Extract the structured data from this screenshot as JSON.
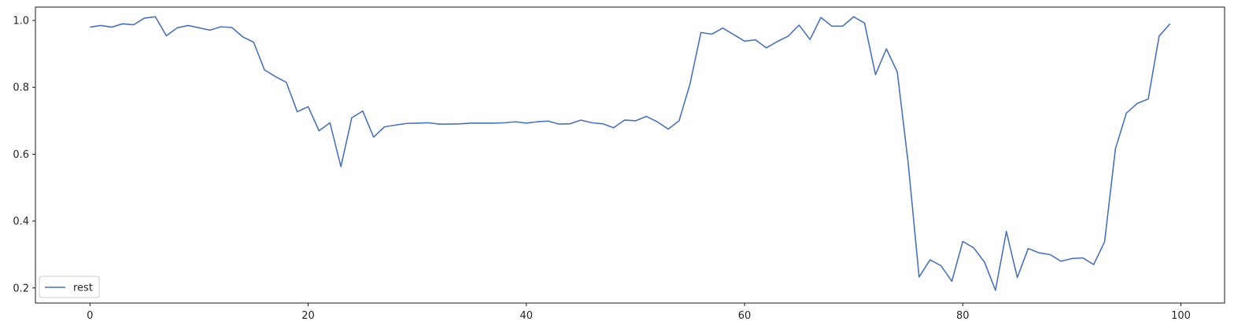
{
  "chart_data": {
    "type": "line",
    "title": "",
    "xlabel": "",
    "ylabel": "",
    "xlim": [
      -5,
      104
    ],
    "ylim": [
      0.155,
      1.04
    ],
    "xticks": [
      0,
      20,
      40,
      60,
      80,
      100
    ],
    "yticks": [
      0.2,
      0.4,
      0.6,
      0.8,
      1.0
    ],
    "xtick_labels": [
      "0",
      "20",
      "40",
      "60",
      "80",
      "100"
    ],
    "ytick_labels": [
      "0.2",
      "0.4",
      "0.6",
      "0.8",
      "1.0"
    ],
    "grid": false,
    "legend_position": "lower-left",
    "series": [
      {
        "name": "rest",
        "color": "#4c72b0",
        "x": [
          0,
          1,
          2,
          3,
          4,
          5,
          6,
          7,
          8,
          9,
          10,
          11,
          12,
          13,
          14,
          15,
          16,
          17,
          18,
          19,
          20,
          21,
          22,
          23,
          24,
          25,
          26,
          27,
          28,
          29,
          30,
          31,
          32,
          33,
          34,
          35,
          36,
          37,
          38,
          39,
          40,
          41,
          42,
          43,
          44,
          45,
          46,
          47,
          48,
          49,
          50,
          51,
          52,
          53,
          54,
          55,
          56,
          57,
          58,
          59,
          60,
          61,
          62,
          63,
          64,
          65,
          66,
          67,
          68,
          69,
          70,
          71,
          72,
          73,
          74,
          75,
          76,
          77,
          78,
          79,
          80,
          81,
          82,
          83,
          84,
          85,
          86,
          87,
          88,
          89,
          90,
          91,
          92,
          93,
          94,
          95,
          96,
          97,
          98,
          99
        ],
        "values": [
          0.98,
          0.985,
          0.98,
          0.99,
          0.987,
          1.007,
          1.011,
          0.954,
          0.978,
          0.985,
          0.978,
          0.971,
          0.981,
          0.979,
          0.951,
          0.935,
          0.852,
          0.832,
          0.815,
          0.727,
          0.742,
          0.67,
          0.694,
          0.563,
          0.709,
          0.729,
          0.651,
          0.682,
          0.687,
          0.692,
          0.693,
          0.694,
          0.69,
          0.69,
          0.691,
          0.693,
          0.693,
          0.693,
          0.694,
          0.697,
          0.693,
          0.697,
          0.699,
          0.69,
          0.691,
          0.702,
          0.694,
          0.691,
          0.679,
          0.702,
          0.7,
          0.713,
          0.697,
          0.675,
          0.7,
          0.81,
          0.964,
          0.959,
          0.977,
          0.958,
          0.938,
          0.942,
          0.918,
          0.937,
          0.953,
          0.986,
          0.943,
          1.009,
          0.983,
          0.983,
          1.011,
          0.992,
          0.838,
          0.915,
          0.846,
          0.573,
          0.233,
          0.284,
          0.267,
          0.22,
          0.339,
          0.32,
          0.277,
          0.193,
          0.369,
          0.231,
          0.318,
          0.305,
          0.3,
          0.28,
          0.288,
          0.29,
          0.27,
          0.338,
          0.617,
          0.723,
          0.752,
          0.765,
          0.953,
          0.99
        ]
      }
    ]
  }
}
